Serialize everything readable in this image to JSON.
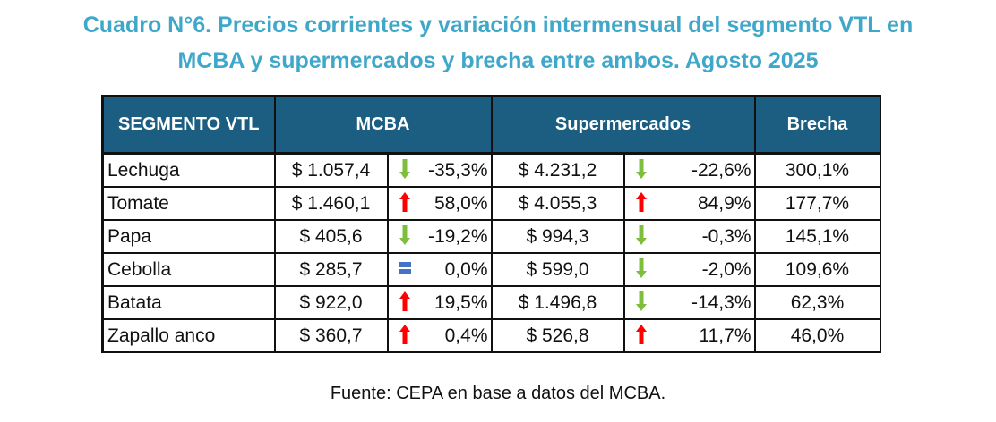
{
  "title_line1": "Cuadro N°6.  Precios corrientes y variación intermensual del segmento VTL en",
  "title_line2": "MCBA y supermercados y brecha entre ambos. Agosto 2025",
  "headers": {
    "segment": "SEGMENTO VTL",
    "mcba": "MCBA",
    "supermercados": "Supermercados",
    "brecha": "Brecha"
  },
  "rows": [
    {
      "segment": "Lechuga",
      "mcba_price": "$ 1.057,4",
      "mcba_icon": "arrow-down-green-icon",
      "mcba_var": "-35,3%",
      "super_price": "$ 4.231,2",
      "super_icon": "arrow-down-green-icon",
      "super_var": "-22,6%",
      "brecha": "300,1%"
    },
    {
      "segment": "Tomate",
      "mcba_price": "$ 1.460,1",
      "mcba_icon": "arrow-up-red-icon",
      "mcba_var": "58,0%",
      "super_price": "$ 4.055,3",
      "super_icon": "arrow-up-red-icon",
      "super_var": "84,9%",
      "brecha": "177,7%"
    },
    {
      "segment": "Papa",
      "mcba_price": "$ 405,6",
      "mcba_icon": "arrow-down-green-icon",
      "mcba_var": "-19,2%",
      "super_price": "$ 994,3",
      "super_icon": "arrow-down-green-icon",
      "super_var": "-0,3%",
      "brecha": "145,1%"
    },
    {
      "segment": "Cebolla",
      "mcba_price": "$ 285,7",
      "mcba_icon": "equal-blue-icon",
      "mcba_var": "0,0%",
      "super_price": "$ 599,0",
      "super_icon": "arrow-down-green-icon",
      "super_var": "-2,0%",
      "brecha": "109,6%"
    },
    {
      "segment": "Batata",
      "mcba_price": "$ 922,0",
      "mcba_icon": "arrow-up-red-icon",
      "mcba_var": "19,5%",
      "super_price": "$ 1.496,8",
      "super_icon": "arrow-down-green-icon",
      "super_var": "-14,3%",
      "brecha": "62,3%"
    },
    {
      "segment": "Zapallo anco",
      "mcba_price": "$ 360,7",
      "mcba_icon": "arrow-up-red-icon",
      "mcba_var": "0,4%",
      "super_price": "$ 526,8",
      "super_icon": "arrow-up-red-icon",
      "super_var": "11,7%",
      "brecha": "46,0%"
    }
  ],
  "colors": {
    "title": "#3FA7C9",
    "header_bg": "#1B5E82",
    "up": "#FF0000",
    "down": "#7DBE3C",
    "equal": "#4472C4"
  },
  "source": "Fuente: CEPA en base a datos del MCBA."
}
